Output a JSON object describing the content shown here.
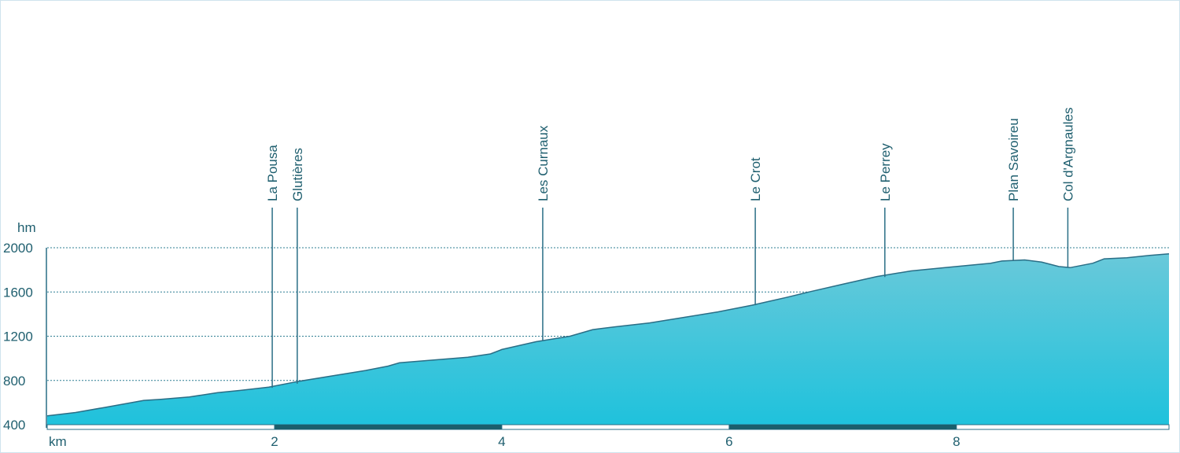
{
  "chart_data": {
    "type": "area",
    "xlabel": "km",
    "ylabel": "hm",
    "xlim": [
      0,
      9.87
    ],
    "ylim": [
      400,
      2000
    ],
    "y_ticks": [
      "400",
      "800",
      "1200",
      "1600",
      "2000"
    ],
    "x_ticks": [
      "2",
      "4",
      "6",
      "8"
    ],
    "grid": "horizontal dotted",
    "profile": {
      "x": [
        0.0,
        0.25,
        0.5,
        0.85,
        1.0,
        1.25,
        1.5,
        1.7,
        1.95,
        2.2,
        2.5,
        2.8,
        3.0,
        3.1,
        3.4,
        3.7,
        3.9,
        4.0,
        4.3,
        4.6,
        4.8,
        5.0,
        5.3,
        5.6,
        5.9,
        6.2,
        6.5,
        6.7,
        7.0,
        7.3,
        7.6,
        7.9,
        8.1,
        8.3,
        8.4,
        8.6,
        8.75,
        8.9,
        9.0,
        9.2,
        9.3,
        9.5,
        9.7,
        9.87
      ],
      "y": [
        480,
        510,
        555,
        620,
        630,
        650,
        690,
        710,
        740,
        790,
        840,
        890,
        930,
        960,
        985,
        1010,
        1040,
        1080,
        1150,
        1200,
        1260,
        1285,
        1320,
        1370,
        1420,
        1480,
        1550,
        1600,
        1670,
        1740,
        1790,
        1820,
        1840,
        1860,
        1880,
        1890,
        1870,
        1830,
        1820,
        1860,
        1900,
        1910,
        1930,
        1945
      ]
    },
    "places": [
      {
        "name": "La Pousa",
        "km": 1.98,
        "elev": 733
      },
      {
        "name": "Glutières",
        "km": 2.2,
        "elev": 771
      },
      {
        "name": "Les Curnaux",
        "km": 4.36,
        "elev": 1160
      },
      {
        "name": "Le Crot",
        "km": 6.23,
        "elev": 1480
      },
      {
        "name": "Le Perrey",
        "km": 7.37,
        "elev": 1735
      },
      {
        "name": "Plan Savoireu",
        "km": 8.5,
        "elev": 1885
      },
      {
        "name": "Col d'Argnaules",
        "km": 8.98,
        "elev": 1820
      }
    ],
    "colors": {
      "fill_top": "#69c9da",
      "fill_bottom": "#1fc2dc",
      "outline": "#2a6e86",
      "text": "#1f5f6f",
      "grid": "#2f7f93",
      "scale_bar": "#1b5e6c"
    }
  }
}
